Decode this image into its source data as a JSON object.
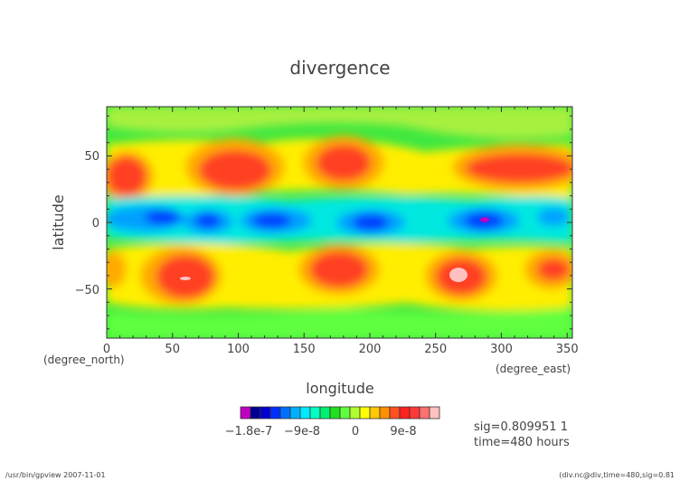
{
  "chart_data": {
    "type": "heatmap",
    "title": "divergence",
    "xlabel": "longitude",
    "ylabel": "latitude",
    "x_unit": "(degree_east)",
    "y_unit": "(degree_north)",
    "xlim": [
      0,
      354
    ],
    "ylim": [
      -87,
      87
    ],
    "x_ticks": [
      "0",
      "50",
      "100",
      "150",
      "200",
      "250",
      "300",
      "350"
    ],
    "y_ticks": [
      "50",
      "0",
      "−50"
    ],
    "grid": false,
    "colorbar": {
      "labels": [
        "−1.8e-7",
        "−9e-8",
        "0",
        "9e-8"
      ],
      "colors": [
        "#c000c0",
        "#000090",
        "#0000d0",
        "#0030ff",
        "#0070ff",
        "#00b0ff",
        "#00e8ff",
        "#00ffc0",
        "#00f070",
        "#20e020",
        "#60ff40",
        "#b0ff30",
        "#ffff00",
        "#ffc800",
        "#ff9000",
        "#ff5020",
        "#ff2020",
        "#ff3838",
        "#ff7070",
        "#ffc0c0"
      ]
    },
    "annotations": [
      "sig=0.809951 1",
      "time=480 hours"
    ]
  },
  "footer": {
    "left": "/usr/bin/gpview   2007-11-01",
    "right": "(div.nc@div,time=480,sig=0.81"
  }
}
